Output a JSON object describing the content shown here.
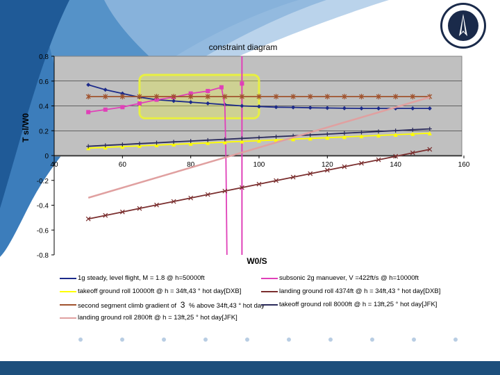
{
  "chart_data": {
    "type": "line",
    "title": "constraint diagram",
    "xlabel": "W0/S",
    "ylabel": "T sl/W0",
    "xlim": [
      40,
      160
    ],
    "ylim": [
      -0.8,
      0.8
    ],
    "x_ticks": [
      "40",
      "60",
      "80",
      "100",
      "120",
      "140",
      "160"
    ],
    "y_ticks": [
      "0.8",
      "0.6",
      "0.4",
      "0.2",
      "0",
      "-0.2",
      "-0.4",
      "-0.6",
      "-0.8"
    ],
    "grid": true,
    "legend_position": "bottom",
    "series": [
      {
        "name": "1g steady, level flight, M = 1.8 @ h=50000ft",
        "color": "#1c2a8a",
        "marker": "diamond",
        "x": [
          50,
          55,
          60,
          65,
          70,
          75,
          80,
          85,
          90,
          95,
          100,
          105,
          110,
          115,
          120,
          125,
          130,
          135,
          140,
          145,
          150
        ],
        "y": [
          0.57,
          0.53,
          0.5,
          0.47,
          0.45,
          0.44,
          0.43,
          0.42,
          0.41,
          0.4,
          0.395,
          0.39,
          0.388,
          0.385,
          0.383,
          0.381,
          0.38,
          0.38,
          0.38,
          0.38,
          0.38
        ]
      },
      {
        "name": "subsonic 2g manuever, V =422ft/s @ h=10000ft",
        "color": "#e040b8",
        "marker": "square",
        "x": [
          50,
          55,
          60,
          65,
          70,
          75,
          80,
          85,
          89,
          90,
          90.3,
          90.6
        ],
        "y": [
          0.35,
          0.37,
          0.39,
          0.42,
          0.45,
          0.47,
          0.5,
          0.52,
          0.55,
          0.4,
          0.0,
          -0.8
        ]
      },
      {
        "name": "takeoff ground roll 10000ft @ h = 34ft,43 ° hot day[DXB]",
        "color": "#ffff00",
        "marker": "triangle",
        "x": [
          50,
          55,
          60,
          65,
          70,
          75,
          80,
          85,
          90,
          95,
          100,
          105,
          110,
          115,
          120,
          125,
          130,
          135,
          140,
          145,
          150
        ],
        "y": [
          0.06,
          0.066,
          0.072,
          0.078,
          0.084,
          0.09,
          0.096,
          0.102,
          0.108,
          0.114,
          0.12,
          0.126,
          0.132,
          0.138,
          0.144,
          0.15,
          0.156,
          0.162,
          0.168,
          0.174,
          0.18
        ]
      },
      {
        "name": "landing ground roll 4374ft @ h = 34ft,43 ° hot day[DXB]",
        "color": "#7a2e2e",
        "marker": "x",
        "x": [
          50,
          55,
          60,
          65,
          70,
          75,
          80,
          85,
          90,
          95,
          100,
          105,
          110,
          115,
          120,
          125,
          130,
          135,
          140,
          145,
          150
        ],
        "y": [
          -0.51,
          -0.482,
          -0.454,
          -0.426,
          -0.398,
          -0.37,
          -0.342,
          -0.314,
          -0.286,
          -0.258,
          -0.23,
          -0.202,
          -0.174,
          -0.146,
          -0.118,
          -0.09,
          -0.062,
          -0.034,
          -0.006,
          0.022,
          0.05
        ]
      },
      {
        "name": "second segment climb gradient of",
        "name_suffix": "% above 34ft,43 ° hot day",
        "inline_number": "3",
        "color": "#a0522d",
        "marker": "asterisk",
        "x": [
          50,
          55,
          60,
          65,
          70,
          75,
          80,
          85,
          90,
          95,
          100,
          105,
          110,
          115,
          120,
          125,
          130,
          135,
          140,
          145,
          150
        ],
        "y": [
          0.475,
          0.475,
          0.475,
          0.475,
          0.475,
          0.475,
          0.475,
          0.475,
          0.475,
          0.475,
          0.475,
          0.475,
          0.475,
          0.475,
          0.475,
          0.475,
          0.475,
          0.475,
          0.475,
          0.475,
          0.475
        ]
      },
      {
        "name": "takeoff ground roll 8000ft @ h = 13ft,25 ° hot day[JFK]",
        "color": "#2a2a5a",
        "marker": "plus",
        "x": [
          50,
          55,
          60,
          65,
          70,
          75,
          80,
          85,
          90,
          95,
          100,
          105,
          110,
          115,
          120,
          125,
          130,
          135,
          140,
          145,
          150
        ],
        "y": [
          0.075,
          0.082,
          0.089,
          0.096,
          0.103,
          0.11,
          0.117,
          0.124,
          0.131,
          0.138,
          0.145,
          0.152,
          0.159,
          0.166,
          0.173,
          0.18,
          0.187,
          0.194,
          0.201,
          0.208,
          0.215
        ]
      },
      {
        "name": "landing ground roll 2800ft @ h = 13ft,25 ° hot day[JFK]",
        "color": "#e0a0a0",
        "marker": "none",
        "x": [
          50,
          150
        ],
        "y": [
          -0.34,
          0.47
        ]
      }
    ],
    "vertical_line": {
      "x": 95,
      "color": "#e040b8"
    },
    "highlight_region": {
      "x": [
        65,
        100
      ],
      "y": [
        0.3,
        0.65
      ],
      "color": "#e8f040"
    }
  }
}
